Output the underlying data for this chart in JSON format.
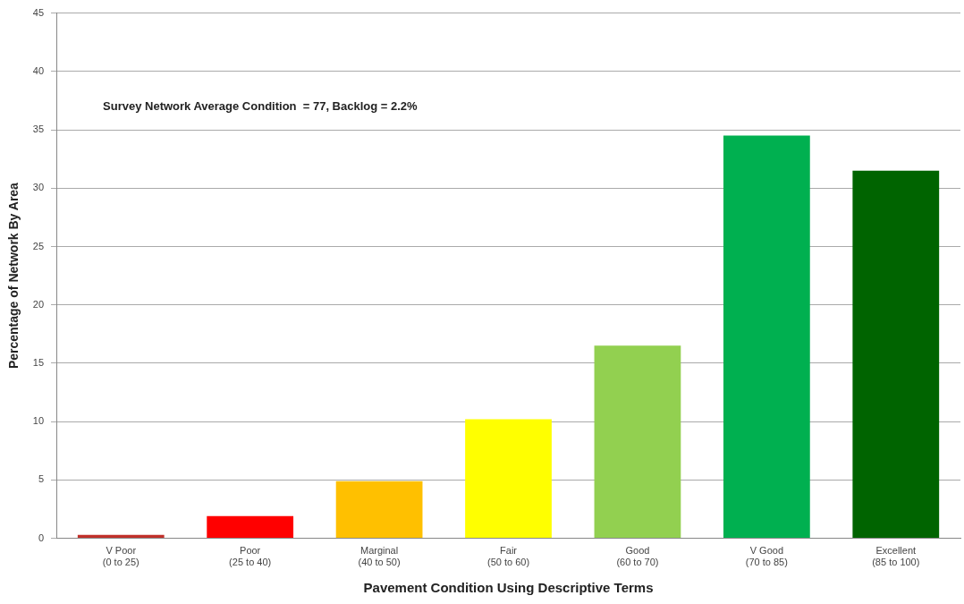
{
  "chart_data": {
    "type": "bar",
    "xlabel": "Pavement Condition Using Descriptive Terms",
    "ylabel": "Percentage of Network By Area",
    "categories": [
      "V Poor\n(0 to 25)",
      "Poor\n(25 to 40)",
      "Marginal\n(40 to 50)",
      "Fair\n(50 to 60)",
      "Good\n(60 to 70)",
      "V Good\n(70 to 85)",
      "Excellent\n(85 to 100)"
    ],
    "values": [
      0.3,
      1.9,
      4.9,
      10.2,
      16.5,
      34.5,
      31.5
    ],
    "colors": [
      "#c0302a",
      "#ff0000",
      "#ffc000",
      "#ffff00",
      "#92d050",
      "#00b050",
      "#006400"
    ],
    "ylim": [
      0,
      45
    ],
    "yticks": [
      0,
      5,
      10,
      15,
      20,
      25,
      30,
      35,
      40,
      45
    ],
    "grid": "y",
    "legend": false,
    "annotations": [
      "Survey Network Average Condition  = 77, Backlog = 2.2%"
    ]
  }
}
